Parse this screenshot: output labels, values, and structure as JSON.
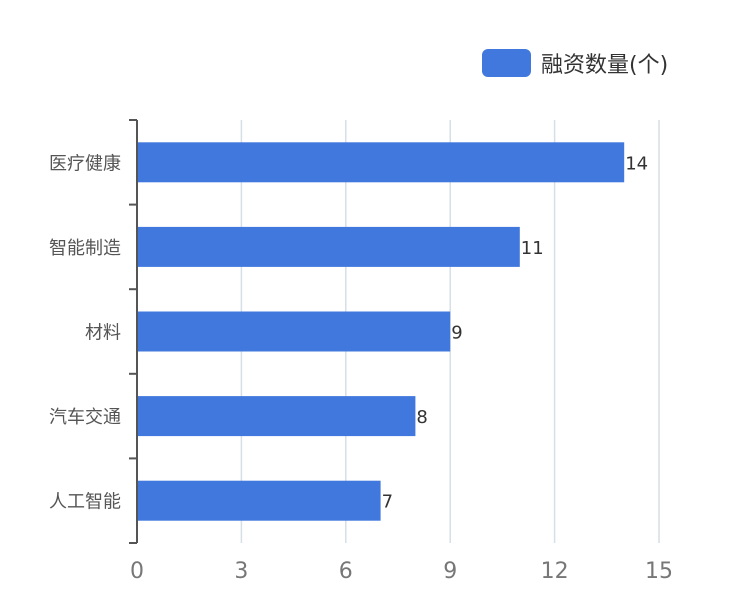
{
  "chart_data": {
    "type": "bar",
    "orientation": "horizontal",
    "categories": [
      "医疗健康",
      "智能制造",
      "材料",
      "汽车交通",
      "人工智能"
    ],
    "series": [
      {
        "name": "融资数量(个)",
        "values": [
          14,
          11,
          9,
          8,
          7
        ]
      }
    ],
    "xlim": [
      0,
      15
    ],
    "xticks": [
      0,
      3,
      6,
      9,
      12,
      15
    ],
    "grid": true,
    "legend_position": "top-right",
    "colors": {
      "bar": "#4178de",
      "grid": "#d5dfe6",
      "axis": "#555555"
    }
  }
}
